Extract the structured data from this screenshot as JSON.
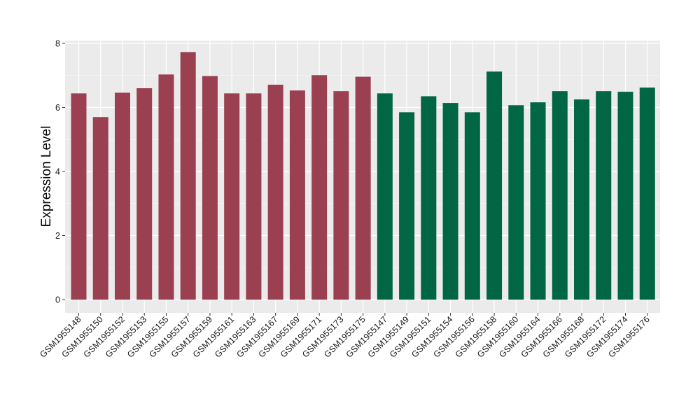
{
  "chart_data": {
    "type": "bar",
    "xlabel": "",
    "ylabel": "Expression Level",
    "ylim": [
      0,
      8
    ],
    "yticks": [
      0,
      2,
      4,
      6,
      8
    ],
    "grid": true,
    "background": "#ebebeb",
    "categories": [
      "GSM1955148",
      "GSM1955150",
      "GSM1955152",
      "GSM1955153",
      "GSM1955155",
      "GSM1955157",
      "GSM1955159",
      "GSM1955161",
      "GSM1955163",
      "GSM1955167",
      "GSM1955169",
      "GSM1955171",
      "GSM1955173",
      "GSM1955175",
      "GSM1955147",
      "GSM1955149",
      "GSM1955151",
      "GSM1955154",
      "GSM1955156",
      "GSM1955158",
      "GSM1955160",
      "GSM1955164",
      "GSM1955166",
      "GSM1955168",
      "GSM1955172",
      "GSM1955174",
      "GSM1955176"
    ],
    "values": [
      6.44,
      5.7,
      6.46,
      6.6,
      7.03,
      7.73,
      6.98,
      6.44,
      6.44,
      6.71,
      6.53,
      7.01,
      6.51,
      6.96,
      6.44,
      5.85,
      6.35,
      6.14,
      5.85,
      7.12,
      6.07,
      6.16,
      6.51,
      6.25,
      6.51,
      6.49,
      6.62
    ],
    "groups": [
      {
        "color": "#9b4050",
        "count": 14
      },
      {
        "color": "#006644",
        "count": 13
      }
    ]
  }
}
